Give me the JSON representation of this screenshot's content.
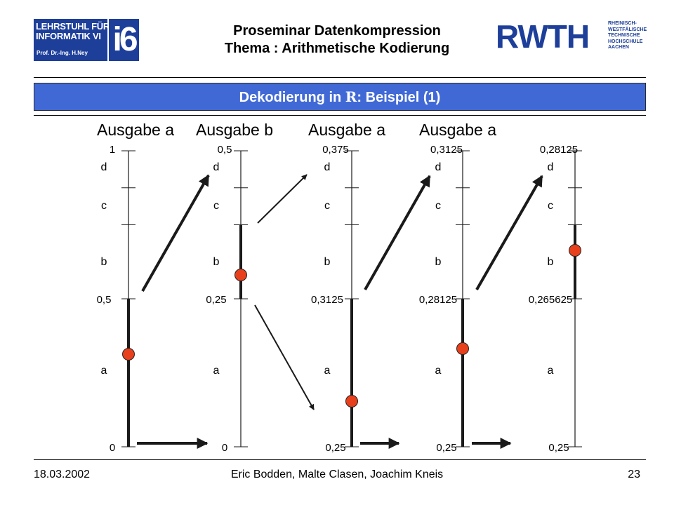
{
  "header": {
    "logo_left": {
      "line1": "LEHRSTUHL FÜR",
      "line2": "INFORMATIK VI",
      "line3": "Prof. Dr.-Ing. H.Ney",
      "mark": "i6"
    },
    "title_line1": "Proseminar Datenkompression",
    "title_line2": "Thema : Arithmetische Kodierung",
    "logo_right": {
      "mark": "RWTH",
      "sub": [
        "RHEINISCH-",
        "WESTFÄLISCHE",
        "TECHNISCHE",
        "HOCHSCHULE",
        "AACHEN"
      ]
    }
  },
  "section": {
    "prefix": "Dekodierung in ",
    "symbol": "R",
    "suffix": ": Beispiel (1)"
  },
  "diagram": {
    "outputs": [
      "Ausgabe a",
      "Ausgabe b",
      "Ausgabe a",
      "Ausgabe a"
    ],
    "symbols": [
      "d",
      "c",
      "b",
      "a"
    ],
    "scales": [
      {
        "top": "1",
        "mid": "0,5",
        "bottom": "0"
      },
      {
        "top": "0,5",
        "mid": "0,25",
        "bottom": "0"
      },
      {
        "top": "0,375",
        "mid": "0,3125",
        "bottom": "0,25"
      },
      {
        "top": "0,3125",
        "mid": "0,28125",
        "bottom": "0,25"
      },
      {
        "top": "0,28125",
        "mid": "0,265625",
        "bottom": "0,25"
      }
    ],
    "highlight": [
      "a",
      "b",
      "a",
      "a",
      "b"
    ],
    "colors": {
      "marker": "#e8401c",
      "line": "#1a1a1a"
    }
  },
  "footer": {
    "date": "18.03.2002",
    "authors": "Eric Bodden, Malte Clasen, Joachim Kneis",
    "page": "23"
  }
}
